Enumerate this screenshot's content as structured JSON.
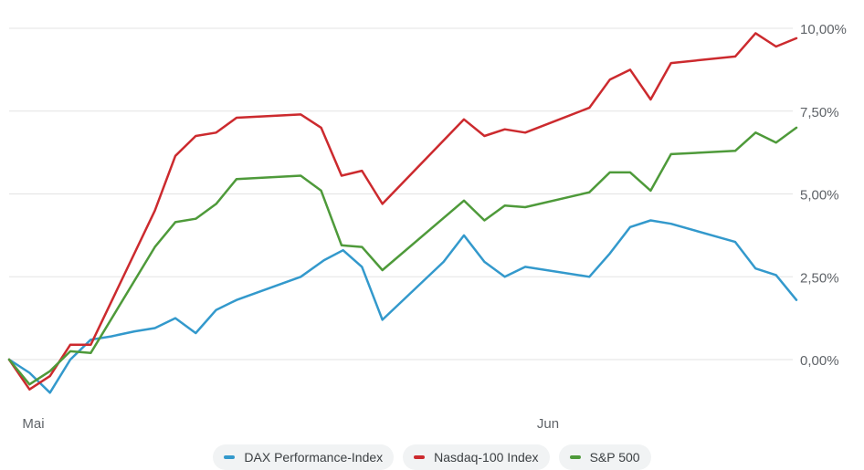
{
  "chart_data": {
    "type": "line",
    "title": "",
    "xlabel": "",
    "ylabel": "",
    "x": [
      0,
      1,
      2,
      3,
      4,
      5,
      6,
      7,
      8,
      9,
      10,
      11,
      12,
      13,
      14,
      15,
      16,
      17,
      18,
      19,
      20,
      21,
      22,
      23,
      24,
      25,
      26,
      27,
      28,
      29,
      30,
      31,
      32,
      33,
      34,
      35,
      36,
      37,
      38,
      39,
      40,
      41,
      42,
      43,
      44,
      45,
      46,
      47,
      48,
      49,
      50,
      51,
      52,
      53,
      54,
      55,
      56,
      57,
      58,
      59,
      60,
      61
    ],
    "x_tick_labels": [
      {
        "label": "Mai",
        "x": 0.4
      },
      {
        "label": "Jun",
        "x": 35.7
      }
    ],
    "ylim": [
      -1.5,
      10.5
    ],
    "y_ticks": [
      {
        "value": 0.0,
        "label": "0,00%"
      },
      {
        "value": 2.5,
        "label": "2,50%"
      },
      {
        "value": 5.0,
        "label": "5,00%"
      },
      {
        "value": 7.5,
        "label": "7,50%"
      },
      {
        "value": 10.0,
        "label": "10,00%"
      }
    ],
    "grid": true,
    "legend_position": "bottom-center",
    "series": [
      {
        "name": "DAX Performance-Index",
        "color": "#3399cc",
        "points": [
          [
            0,
            0.0
          ],
          [
            1.4,
            -0.4
          ],
          [
            2.8,
            -1.0
          ],
          [
            4.2,
            0.0
          ],
          [
            5.6,
            0.6
          ],
          [
            7.0,
            0.7
          ],
          [
            8.6,
            0.85
          ],
          [
            10.0,
            0.95
          ],
          [
            11.4,
            1.25
          ],
          [
            12.8,
            0.8
          ],
          [
            14.2,
            1.5
          ],
          [
            15.6,
            1.8
          ],
          [
            20.0,
            2.5
          ],
          [
            21.6,
            3.0
          ],
          [
            22.9,
            3.3
          ],
          [
            24.2,
            2.8
          ],
          [
            25.6,
            1.2
          ],
          [
            29.8,
            2.95
          ],
          [
            31.2,
            3.75
          ],
          [
            32.6,
            2.95
          ],
          [
            34.0,
            2.5
          ],
          [
            35.4,
            2.8
          ],
          [
            39.8,
            2.5
          ],
          [
            41.2,
            3.2
          ],
          [
            42.6,
            4.0
          ],
          [
            44.0,
            4.2
          ],
          [
            45.4,
            4.1
          ],
          [
            49.8,
            3.55
          ],
          [
            51.2,
            2.75
          ],
          [
            52.6,
            2.55
          ],
          [
            54.0,
            1.8
          ]
        ]
      },
      {
        "name": "Nasdaq-100 Index",
        "color": "#cc2a2e",
        "points": [
          [
            0,
            0.0
          ],
          [
            1.4,
            -0.9
          ],
          [
            2.8,
            -0.5
          ],
          [
            4.2,
            0.45
          ],
          [
            5.6,
            0.45
          ],
          [
            10.0,
            4.5
          ],
          [
            11.4,
            6.15
          ],
          [
            12.8,
            6.75
          ],
          [
            14.2,
            6.85
          ],
          [
            15.6,
            7.3
          ],
          [
            20.0,
            7.4
          ],
          [
            21.4,
            7.0
          ],
          [
            22.8,
            5.55
          ],
          [
            24.2,
            5.7
          ],
          [
            25.6,
            4.7
          ],
          [
            31.2,
            7.25
          ],
          [
            32.6,
            6.75
          ],
          [
            34.0,
            6.95
          ],
          [
            35.4,
            6.85
          ],
          [
            39.8,
            7.6
          ],
          [
            41.2,
            8.45
          ],
          [
            42.6,
            8.75
          ],
          [
            44.0,
            7.85
          ],
          [
            45.4,
            8.95
          ],
          [
            49.8,
            9.15
          ],
          [
            51.2,
            9.85
          ],
          [
            52.6,
            9.45
          ],
          [
            54.0,
            9.7
          ]
        ]
      },
      {
        "name": "S&P 500",
        "color": "#4e9a3a",
        "points": [
          [
            0,
            0.0
          ],
          [
            1.4,
            -0.75
          ],
          [
            2.8,
            -0.35
          ],
          [
            4.2,
            0.25
          ],
          [
            5.6,
            0.2
          ],
          [
            10.0,
            3.4
          ],
          [
            11.4,
            4.15
          ],
          [
            12.8,
            4.25
          ],
          [
            14.2,
            4.7
          ],
          [
            15.6,
            5.45
          ],
          [
            20.0,
            5.55
          ],
          [
            21.4,
            5.1
          ],
          [
            22.8,
            3.45
          ],
          [
            24.2,
            3.4
          ],
          [
            25.6,
            2.7
          ],
          [
            31.2,
            4.8
          ],
          [
            32.6,
            4.2
          ],
          [
            34.0,
            4.65
          ],
          [
            35.4,
            4.6
          ],
          [
            39.8,
            5.05
          ],
          [
            41.2,
            5.65
          ],
          [
            42.6,
            5.65
          ],
          [
            44.0,
            5.1
          ],
          [
            45.4,
            6.2
          ],
          [
            49.8,
            6.3
          ],
          [
            51.2,
            6.85
          ],
          [
            52.6,
            6.55
          ],
          [
            54.0,
            7.0
          ]
        ]
      }
    ]
  }
}
